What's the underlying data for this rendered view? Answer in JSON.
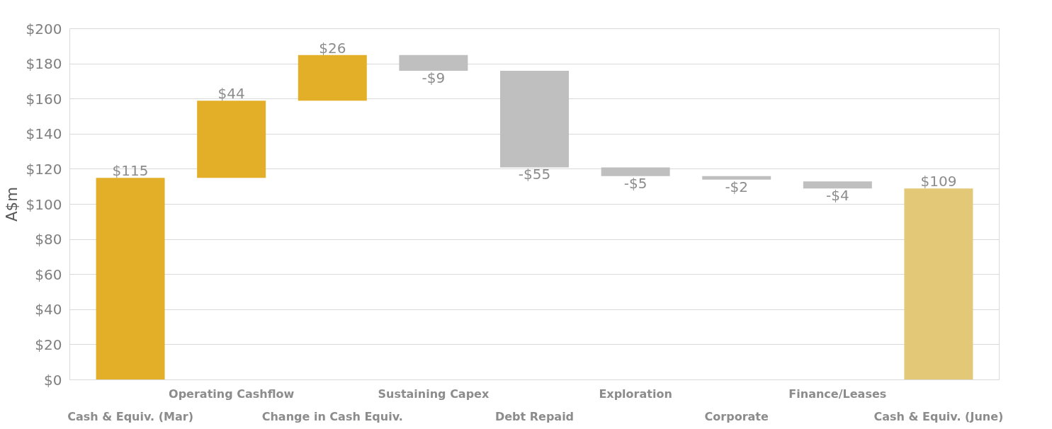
{
  "chart_data": {
    "type": "bar",
    "ylabel": "A$m",
    "categories": [
      "Cash & Equiv. (Mar)",
      "Operating Cashflow",
      "Change in Cash Equiv.",
      "Sustaining Capex",
      "Debt Repaid",
      "Exploration",
      "Corporate",
      "Finance/Leases",
      "Cash & Equiv. (June)"
    ],
    "values": [
      115,
      44,
      26,
      -9,
      -55,
      -5,
      -2,
      -4,
      109
    ],
    "base": [
      0,
      115,
      159,
      185,
      176,
      121,
      116,
      113,
      0
    ],
    "colors": [
      "#e3ae28",
      "#e3ae28",
      "#e3ae28",
      "#bfbfbf",
      "#bfbfbf",
      "#bfbfbf",
      "#bfbfbf",
      "#bfbfbf",
      "#e3c878"
    ],
    "value_labels": [
      "$115",
      "$44",
      "$26",
      "-$9",
      "-$55",
      "-$5",
      "-$2",
      "-$4",
      "$109"
    ],
    "ylim": [
      0,
      200
    ],
    "yticks": [
      {
        "value": 0,
        "label": "$0"
      },
      {
        "value": 20,
        "label": "$20"
      },
      {
        "value": 40,
        "label": "$40"
      },
      {
        "value": 60,
        "label": "$60"
      },
      {
        "value": 80,
        "label": "$80"
      },
      {
        "value": 100,
        "label": "$100"
      },
      {
        "value": 120,
        "label": "$120"
      },
      {
        "value": 140,
        "label": "$140"
      },
      {
        "value": 160,
        "label": "$160"
      },
      {
        "value": 180,
        "label": "$180"
      },
      {
        "value": 200,
        "label": "$200"
      }
    ],
    "grid": "y"
  }
}
